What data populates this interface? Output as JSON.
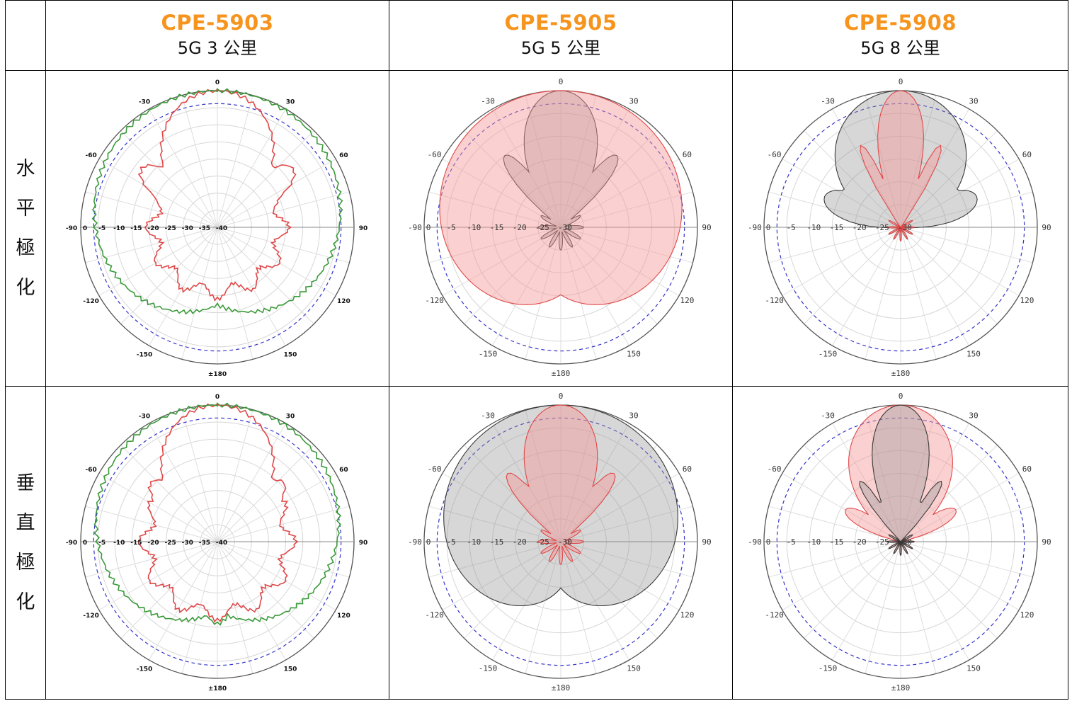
{
  "headers": [
    {
      "model": "CPE-5903",
      "range": "5G 3 公里"
    },
    {
      "model": "CPE-5905",
      "range": "5G 5 公里"
    },
    {
      "model": "CPE-5908",
      "range": "5G 8 公里"
    }
  ],
  "rows": [
    {
      "label_chars": [
        "水",
        "平",
        "極",
        "化"
      ]
    },
    {
      "label_chars": [
        "垂",
        "直",
        "極",
        "化"
      ]
    }
  ],
  "chart_data": [
    {
      "type": "polar",
      "model": "CPE-5903",
      "polarization": "水平極化",
      "angle_labels": [
        "0",
        "30",
        "60",
        "90",
        "120",
        "150",
        "±180",
        "-150",
        "-120",
        "-90",
        "-60",
        "-30"
      ],
      "radial_labels": [
        "0",
        "-5",
        "-10",
        "-15",
        "-20",
        "-25",
        "-30",
        "-35",
        "-40"
      ],
      "rmin": -40,
      "rmax": 0,
      "colors": {
        "reference_circle": "#3333cc",
        "series_a": "#e04848",
        "series_b": "#3a9a3a"
      },
      "series": [
        {
          "pattern": "directional",
          "color": "red",
          "fill": false,
          "peak_db": 0,
          "beamwidth_deg": 36,
          "sidelobe_db": -12,
          "sidelobe_deg": 52,
          "backlobe_db": -21
        },
        {
          "pattern": "wide",
          "color": "green",
          "fill": false,
          "peak_db": 0,
          "beamwidth_deg": 150,
          "backlobe_db": -20
        }
      ]
    },
    {
      "type": "polar",
      "model": "CPE-5905",
      "polarization": "水平極化",
      "angle_labels": [
        "0",
        "30",
        "60",
        "90",
        "120",
        "150",
        "±180",
        "-150",
        "-120",
        "-90",
        "-60",
        "-30"
      ],
      "radial_labels": [
        "0",
        "-5",
        "-10",
        "-15",
        "-20",
        "-25",
        "-30"
      ],
      "rmin": -30,
      "rmax": 0,
      "colors": {
        "reference_circle": "#3333cc",
        "series_a": "#555555",
        "series_b": "#e04848"
      },
      "series": [
        {
          "pattern": "directional",
          "color": "gray",
          "fill": true,
          "peak_db": 0,
          "beamwidth_deg": 26,
          "sidelobe_db": -10,
          "sidelobe_deg": 38,
          "backlobe_db": -27
        },
        {
          "pattern": "wide",
          "color": "red",
          "fill": true,
          "peak_db": 0,
          "beamwidth_deg": 160,
          "backlobe_db": -29
        }
      ]
    },
    {
      "type": "polar",
      "model": "CPE-5908",
      "polarization": "水平極化",
      "angle_labels": [
        "0",
        "30",
        "60",
        "90",
        "120",
        "150",
        "±180",
        "-150",
        "-120",
        "-90",
        "-60",
        "-30"
      ],
      "radial_labels": [
        "0",
        "-5",
        "-10",
        "-15",
        "-20",
        "-25",
        "-30"
      ],
      "rmin": -30,
      "rmax": 0,
      "colors": {
        "reference_circle": "#3333cc",
        "series_a": "#555555",
        "series_b": "#e04848"
      },
      "series": [
        {
          "pattern": "medium",
          "color": "gray",
          "fill": true,
          "peak_db": 0,
          "beamwidth_deg": 50,
          "sidelobe_db": -12,
          "sidelobe_deg": 68,
          "backlobe_db": -29
        },
        {
          "pattern": "directional",
          "color": "red",
          "fill": true,
          "peak_db": 0,
          "beamwidth_deg": 16,
          "sidelobe_db": -10,
          "sidelobe_deg": 26,
          "backlobe_db": -29
        }
      ]
    },
    {
      "type": "polar",
      "model": "CPE-5903",
      "polarization": "垂直極化",
      "angle_labels": [
        "0",
        "30",
        "60",
        "90",
        "120",
        "150",
        "±180",
        "-150",
        "-120",
        "-90",
        "-60",
        "-30"
      ],
      "radial_labels": [
        "0",
        "-5",
        "-10",
        "-15",
        "-20",
        "-25",
        "-30",
        "-35",
        "-40"
      ],
      "rmin": -40,
      "rmax": 0,
      "colors": {
        "reference_circle": "#3333cc",
        "series_a": "#e04848",
        "series_b": "#3a9a3a"
      },
      "series": [
        {
          "pattern": "directional",
          "color": "red",
          "fill": false,
          "peak_db": 0,
          "beamwidth_deg": 36,
          "sidelobe_db": -14,
          "sidelobe_deg": 48,
          "backlobe_db": -19
        },
        {
          "pattern": "wide",
          "color": "green",
          "fill": false,
          "peak_db": 0,
          "beamwidth_deg": 140,
          "backlobe_db": -18
        }
      ]
    },
    {
      "type": "polar",
      "model": "CPE-5905",
      "polarization": "垂直極化",
      "angle_labels": [
        "0",
        "30",
        "60",
        "90",
        "120",
        "150",
        "±180",
        "-150",
        "-120",
        "-90",
        "-60",
        "-30"
      ],
      "radial_labels": [
        "0",
        "-5",
        "-10",
        "-15",
        "-20",
        "-25",
        "-30"
      ],
      "rmin": -30,
      "rmax": 0,
      "colors": {
        "reference_circle": "#3333cc",
        "series_a": "#555555",
        "series_b": "#e04848"
      },
      "series": [
        {
          "pattern": "wide",
          "color": "gray",
          "fill": true,
          "peak_db": 0,
          "beamwidth_deg": 140,
          "backlobe_db": -29
        },
        {
          "pattern": "directional",
          "color": "red",
          "fill": true,
          "peak_db": 0,
          "beamwidth_deg": 26,
          "sidelobe_db": -11,
          "sidelobe_deg": 38,
          "backlobe_db": -27
        }
      ]
    },
    {
      "type": "polar",
      "model": "CPE-5908",
      "polarization": "垂直極化",
      "angle_labels": [
        "0",
        "30",
        "60",
        "90",
        "120",
        "150",
        "±180",
        "-150",
        "-120",
        "-90",
        "-60",
        "-30"
      ],
      "radial_labels": [
        "0",
        "-5",
        "-10",
        "-15",
        "-20",
        "-25",
        "-30"
      ],
      "rmin": -30,
      "rmax": 0,
      "colors": {
        "reference_circle": "#3333cc",
        "series_a": "#555555",
        "series_b": "#e04848"
      },
      "series": [
        {
          "pattern": "medium",
          "color": "red",
          "fill": true,
          "peak_db": 0,
          "beamwidth_deg": 38,
          "sidelobe_db": -16,
          "sidelobe_deg": 60,
          "backlobe_db": -29
        },
        {
          "pattern": "directional",
          "color": "gray",
          "fill": true,
          "peak_db": 0,
          "beamwidth_deg": 20,
          "sidelobe_db": -14,
          "sidelobe_deg": 34,
          "backlobe_db": -29
        }
      ]
    }
  ]
}
